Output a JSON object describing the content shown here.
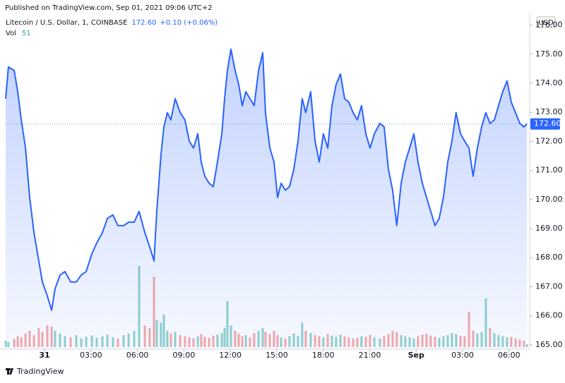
{
  "header": {
    "published": "Published on TradingView.com, Sep 01, 2021 09:06 UTC+2",
    "change": "+0.10 (+0.06%)",
    "currency": "USD"
  },
  "footer": {
    "brand": "TradingView"
  },
  "chart_data": {
    "type": "area",
    "x": [
      -2.51,
      -2.33,
      -1.96,
      -1.73,
      -1.5,
      -1.23,
      -0.96,
      -0.68,
      -0.37,
      -0.14,
      0.18,
      0.46,
      0.68,
      1.0,
      1.32,
      1.69,
      2.05,
      2.37,
      2.69,
      3.06,
      3.37,
      3.74,
      4.06,
      4.42,
      4.74,
      5.11,
      5.43,
      5.79,
      6.11,
      6.48,
      6.79,
      7.07,
      7.25,
      7.52,
      7.71,
      7.93,
      8.16,
      8.44,
      8.76,
      9.07,
      9.35,
      9.62,
      9.9,
      10.12,
      10.35,
      10.63,
      10.9,
      11.17,
      11.45,
      11.63,
      11.81,
      12.04,
      12.31,
      12.54,
      12.77,
      13.0,
      13.27,
      13.54,
      13.82,
      14.09,
      14.27,
      14.55,
      14.82,
      15.05,
      15.28,
      15.55,
      15.82,
      16.1,
      16.37,
      16.64,
      16.87,
      17.19,
      17.47,
      17.74,
      18.01,
      18.29,
      18.56,
      18.83,
      19.11,
      19.38,
      19.65,
      19.93,
      20.2,
      20.47,
      20.75,
      21.02,
      21.3,
      21.66,
      21.93,
      22.21,
      22.48,
      22.75,
      23.03,
      23.3,
      23.58,
      23.85,
      24.12,
      24.4,
      24.67,
      24.94,
      25.22,
      25.49,
      25.76,
      26.04,
      26.31,
      26.58,
      26.86,
      27.13,
      27.41,
      27.68,
      27.95,
      28.23,
      28.5,
      28.77,
      29.05,
      29.32,
      29.59,
      29.87,
      30.14,
      30.42,
      30.69,
      30.96,
      31.15
    ],
    "series": [
      {
        "name": "Litecoin / U.S. Dollar, 1, COINBASE",
        "color": "#2962ff",
        "values": [
          173.47,
          174.56,
          174.44,
          173.71,
          172.74,
          171.77,
          170.07,
          168.86,
          167.89,
          167.16,
          166.68,
          166.19,
          166.92,
          167.4,
          167.52,
          167.16,
          167.16,
          167.4,
          167.52,
          168.13,
          168.5,
          168.86,
          169.35,
          169.47,
          169.1,
          169.1,
          169.22,
          169.22,
          169.59,
          168.86,
          168.37,
          167.89,
          169.59,
          171.53,
          172.5,
          172.99,
          172.74,
          173.47,
          172.99,
          172.74,
          172.01,
          171.77,
          172.26,
          171.29,
          170.8,
          170.56,
          170.44,
          171.29,
          172.26,
          173.47,
          174.44,
          175.17,
          174.44,
          173.96,
          173.23,
          173.71,
          173.47,
          173.23,
          174.44,
          175.05,
          172.99,
          171.77,
          171.29,
          170.07,
          170.56,
          170.32,
          170.44,
          171.04,
          172.01,
          173.47,
          172.99,
          173.71,
          172.01,
          171.29,
          172.26,
          171.77,
          173.23,
          173.96,
          174.32,
          173.47,
          173.35,
          172.99,
          172.74,
          173.23,
          172.26,
          171.77,
          172.26,
          172.62,
          172.5,
          171.04,
          170.32,
          169.1,
          170.56,
          171.29,
          171.77,
          172.26,
          171.29,
          170.56,
          170.07,
          169.59,
          169.1,
          169.35,
          170.07,
          171.29,
          172.01,
          172.99,
          172.26,
          172.01,
          171.77,
          170.8,
          171.77,
          172.5,
          172.99,
          172.62,
          172.74,
          173.23,
          173.71,
          174.08,
          173.35,
          172.99,
          172.62,
          172.5,
          172.6
        ]
      }
    ],
    "last_label": "172.60",
    "volume": {
      "name": "Vol",
      "up_color": "#26a69a",
      "down_color": "#ef5350",
      "values": [
        120,
        90,
        150,
        200,
        180,
        250,
        300,
        220,
        350,
        280,
        400,
        380,
        300,
        250,
        200,
        180,
        220,
        160,
        190,
        210,
        170,
        200,
        230,
        180,
        160,
        220,
        250,
        300,
        1500,
        400,
        350,
        1300,
        500,
        450,
        600,
        300,
        250,
        280,
        220,
        200,
        180,
        160,
        200,
        240,
        190,
        170,
        210,
        230,
        260,
        350,
        850,
        400,
        300,
        250,
        200,
        220,
        180,
        260,
        300,
        350,
        280,
        240,
        300,
        220,
        180,
        160,
        200,
        250,
        210,
        450,
        300,
        260,
        220,
        200,
        180,
        240,
        210,
        190,
        230,
        200,
        180,
        160,
        170,
        200,
        190,
        220,
        180,
        160,
        200,
        240,
        300,
        280,
        220,
        200,
        180,
        160,
        200,
        230,
        250,
        210,
        190,
        170,
        200,
        220,
        260,
        240,
        210,
        200,
        650,
        300,
        250,
        280,
        900,
        350,
        260,
        220,
        200,
        180,
        190,
        160,
        140,
        120,
        51
      ]
    },
    "xlim": [
      -2.51,
      31.24
    ],
    "xticks": [
      {
        "value": 0,
        "label": "31"
      },
      {
        "value": 3,
        "label": "03:00"
      },
      {
        "value": 6,
        "label": "06:00"
      },
      {
        "value": 9,
        "label": "09:00"
      },
      {
        "value": 12,
        "label": "12:00"
      },
      {
        "value": 15,
        "label": "15:00"
      },
      {
        "value": 18,
        "label": "18:00"
      },
      {
        "value": 21,
        "label": "21:00"
      },
      {
        "value": 24,
        "label": "Sep"
      },
      {
        "value": 27,
        "label": "03:00"
      },
      {
        "value": 30,
        "label": "06:00"
      }
    ],
    "ylim": [
      164.85,
      176.38
    ],
    "yticks": [
      {
        "value": 165,
        "label": "165.00"
      },
      {
        "value": 166,
        "label": "166.00"
      },
      {
        "value": 167,
        "label": "167.00"
      },
      {
        "value": 168,
        "label": "168.00"
      },
      {
        "value": 169,
        "label": "169.00"
      },
      {
        "value": 170,
        "label": "170.00"
      },
      {
        "value": 171,
        "label": "171.00"
      },
      {
        "value": 172,
        "label": "172.00"
      },
      {
        "value": 173,
        "label": "173.00"
      },
      {
        "value": 174,
        "label": "174.00"
      },
      {
        "value": 175,
        "label": "175.00"
      },
      {
        "value": 176,
        "label": "176.00"
      }
    ],
    "grid": false
  }
}
